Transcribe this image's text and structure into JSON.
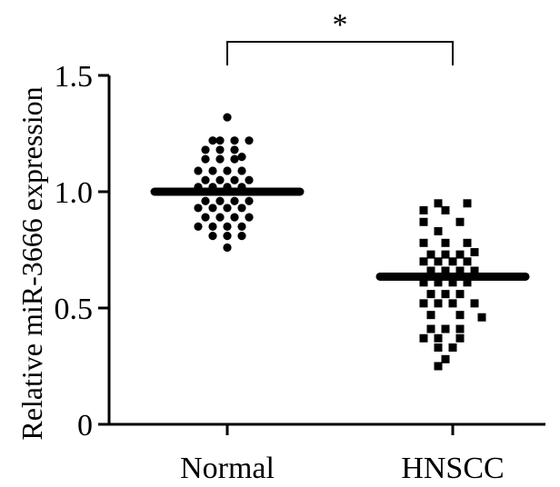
{
  "chart_data": {
    "type": "scatter",
    "ylabel": "Relative miR-3666 expression",
    "ylim": [
      0,
      1.5
    ],
    "yticks": [
      "0",
      "0.5",
      "1.0",
      "1.5"
    ],
    "yticks_values": [
      0,
      0.5,
      1.0,
      1.5
    ],
    "categories": [
      "Normal",
      "HNSCC"
    ],
    "significance": "*",
    "series": [
      {
        "name": "Normal",
        "marker": "circle",
        "mean": 1.0,
        "points": [
          {
            "dx": 0,
            "y": 1.32
          },
          {
            "dx": -2,
            "y": 1.22
          },
          {
            "dx": -1,
            "y": 1.22
          },
          {
            "dx": 1,
            "y": 1.22
          },
          {
            "dx": 3,
            "y": 1.22
          },
          {
            "dx": -3,
            "y": 1.18
          },
          {
            "dx": -1,
            "y": 1.18
          },
          {
            "dx": 1,
            "y": 1.18
          },
          {
            "dx": -3,
            "y": 1.14
          },
          {
            "dx": -1,
            "y": 1.14
          },
          {
            "dx": 1,
            "y": 1.14
          },
          {
            "dx": 2,
            "y": 1.15
          },
          {
            "dx": -4,
            "y": 1.09
          },
          {
            "dx": -2,
            "y": 1.09
          },
          {
            "dx": 0,
            "y": 1.09
          },
          {
            "dx": 2,
            "y": 1.09
          },
          {
            "dx": -3,
            "y": 1.05
          },
          {
            "dx": -1,
            "y": 1.05
          },
          {
            "dx": 1,
            "y": 1.05
          },
          {
            "dx": 3,
            "y": 1.05
          },
          {
            "dx": -4,
            "y": 1.02
          },
          {
            "dx": -2,
            "y": 1.02
          },
          {
            "dx": 0,
            "y": 1.02
          },
          {
            "dx": 2,
            "y": 1.02
          },
          {
            "dx": -3,
            "y": 0.96
          },
          {
            "dx": -1,
            "y": 0.96
          },
          {
            "dx": 1,
            "y": 0.96
          },
          {
            "dx": 3,
            "y": 0.96
          },
          {
            "dx": -4,
            "y": 0.93
          },
          {
            "dx": -2,
            "y": 0.93
          },
          {
            "dx": 0,
            "y": 0.93
          },
          {
            "dx": 2,
            "y": 0.93
          },
          {
            "dx": -3,
            "y": 0.89
          },
          {
            "dx": -1,
            "y": 0.89
          },
          {
            "dx": 1,
            "y": 0.89
          },
          {
            "dx": 3,
            "y": 0.89
          },
          {
            "dx": -4,
            "y": 0.85
          },
          {
            "dx": -2,
            "y": 0.85
          },
          {
            "dx": 0,
            "y": 0.85
          },
          {
            "dx": 2,
            "y": 0.85
          },
          {
            "dx": -2,
            "y": 0.81
          },
          {
            "dx": 0,
            "y": 0.81
          },
          {
            "dx": 2,
            "y": 0.81
          },
          {
            "dx": 0,
            "y": 0.76
          }
        ]
      },
      {
        "name": "HNSCC",
        "marker": "square",
        "mean": 0.635,
        "points": [
          {
            "dx": -2,
            "y": 0.95
          },
          {
            "dx": 2,
            "y": 0.95
          },
          {
            "dx": -4,
            "y": 0.92
          },
          {
            "dx": -1,
            "y": 0.92
          },
          {
            "dx": -4,
            "y": 0.87
          },
          {
            "dx": 1,
            "y": 0.87
          },
          {
            "dx": -2,
            "y": 0.83
          },
          {
            "dx": -4,
            "y": 0.78
          },
          {
            "dx": -1,
            "y": 0.78
          },
          {
            "dx": 2,
            "y": 0.78
          },
          {
            "dx": -3,
            "y": 0.73
          },
          {
            "dx": -1,
            "y": 0.73
          },
          {
            "dx": 1,
            "y": 0.73
          },
          {
            "dx": 3,
            "y": 0.74
          },
          {
            "dx": -4,
            "y": 0.7
          },
          {
            "dx": -2,
            "y": 0.7
          },
          {
            "dx": 0,
            "y": 0.7
          },
          {
            "dx": 2,
            "y": 0.7
          },
          {
            "dx": -3,
            "y": 0.66
          },
          {
            "dx": -1,
            "y": 0.66
          },
          {
            "dx": 1,
            "y": 0.66
          },
          {
            "dx": 3,
            "y": 0.66
          },
          {
            "dx": -4,
            "y": 0.61
          },
          {
            "dx": -2,
            "y": 0.61
          },
          {
            "dx": 0,
            "y": 0.61
          },
          {
            "dx": 2,
            "y": 0.61
          },
          {
            "dx": -3,
            "y": 0.56
          },
          {
            "dx": -1,
            "y": 0.56
          },
          {
            "dx": 1,
            "y": 0.56
          },
          {
            "dx": -4,
            "y": 0.52
          },
          {
            "dx": -2,
            "y": 0.52
          },
          {
            "dx": 0,
            "y": 0.52
          },
          {
            "dx": 3,
            "y": 0.52
          },
          {
            "dx": -3,
            "y": 0.47
          },
          {
            "dx": 1,
            "y": 0.47
          },
          {
            "dx": 4,
            "y": 0.46
          },
          {
            "dx": -3,
            "y": 0.41
          },
          {
            "dx": -1,
            "y": 0.41
          },
          {
            "dx": 1,
            "y": 0.41
          },
          {
            "dx": -4,
            "y": 0.37
          },
          {
            "dx": -2,
            "y": 0.37
          },
          {
            "dx": 1,
            "y": 0.37
          },
          {
            "dx": -2,
            "y": 0.33
          },
          {
            "dx": 0,
            "y": 0.33
          },
          {
            "dx": -1,
            "y": 0.28
          },
          {
            "dx": -2,
            "y": 0.25
          }
        ]
      }
    ]
  }
}
